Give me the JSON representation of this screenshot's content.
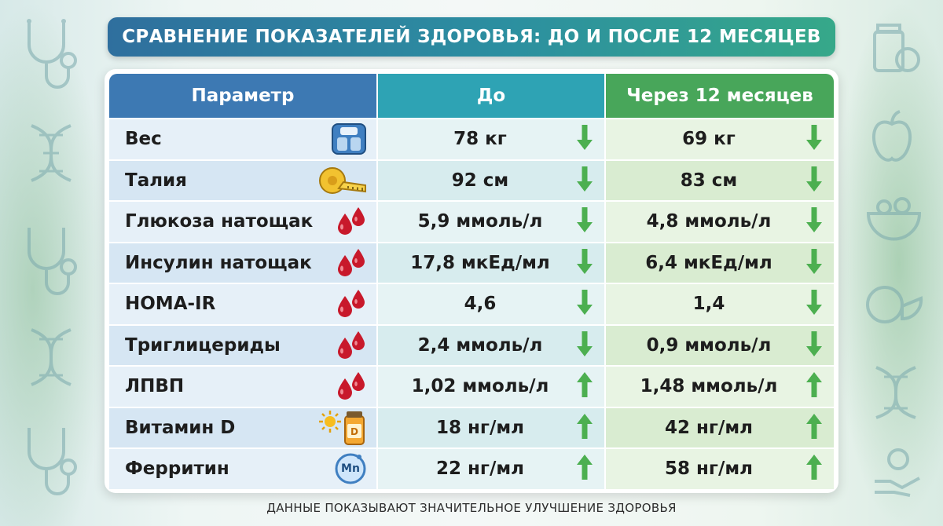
{
  "title": "СРАВНЕНИЕ ПОКАЗАТЕЛЕЙ ЗДОРОВЬЯ: ДО И ПОСЛЕ 12 МЕСЯЦЕВ",
  "headers": {
    "param": "Параметр",
    "before": "До",
    "after": "Через 12 месяцев"
  },
  "rows": [
    {
      "label": "Вес",
      "before": "78 кг",
      "after": "69 кг",
      "icon": "scale-icon",
      "before_arrow": "down",
      "after_arrow": "down"
    },
    {
      "label": "Талия",
      "before": "92 см",
      "after": "83 см",
      "icon": "tape-measure-icon",
      "before_arrow": "down",
      "after_arrow": "down"
    },
    {
      "label": "Глюкоза натощак",
      "before": "5,9 ммоль/л",
      "after": "4,8 ммоль/л",
      "icon": "blood-drops-icon",
      "before_arrow": "down",
      "after_arrow": "down"
    },
    {
      "label": "Инсулин натощак",
      "before": "17,8 мкЕд/мл",
      "after": "6,4 мкЕд/мл",
      "icon": "blood-drops-icon",
      "before_arrow": "down",
      "after_arrow": "down"
    },
    {
      "label": "HOMA-IR",
      "before": "4,6",
      "after": "1,4",
      "icon": "blood-drops-icon",
      "before_arrow": "down",
      "after_arrow": "down"
    },
    {
      "label": "Триглицериды",
      "before": "2,4 ммоль/л",
      "after": "0,9 ммоль/л",
      "icon": "blood-drops-icon",
      "before_arrow": "down",
      "after_arrow": "down"
    },
    {
      "label": "ЛПВП",
      "before": "1,02 ммоль/л",
      "after": "1,48 ммоль/л",
      "icon": "blood-drops-icon",
      "before_arrow": "up",
      "after_arrow": "up"
    },
    {
      "label": "Витамин D",
      "before": "18 нг/мл",
      "after": "42 нг/мл",
      "icon": "vitamin-d-icon",
      "before_arrow": "up",
      "after_arrow": "up"
    },
    {
      "label": "Ферритин",
      "before": "22 нг/мл",
      "after": "58 нг/мл",
      "icon": "mineral-mn-icon",
      "icon_text": "Mn",
      "vitamin_text": "D",
      "before_arrow": "up",
      "after_arrow": "up"
    }
  ],
  "footer": "ДАННЫЕ ПОКАЗЫВАЮТ ЗНАЧИТЕЛЬНОЕ УЛУЧШЕНИЕ ЗДОРОВЬЯ",
  "colors": {
    "arrow": "#4caf50",
    "drop": "#c8192b",
    "header_param": "#3d79b3",
    "header_before": "#2ea3b4",
    "header_after": "#48a65a"
  }
}
